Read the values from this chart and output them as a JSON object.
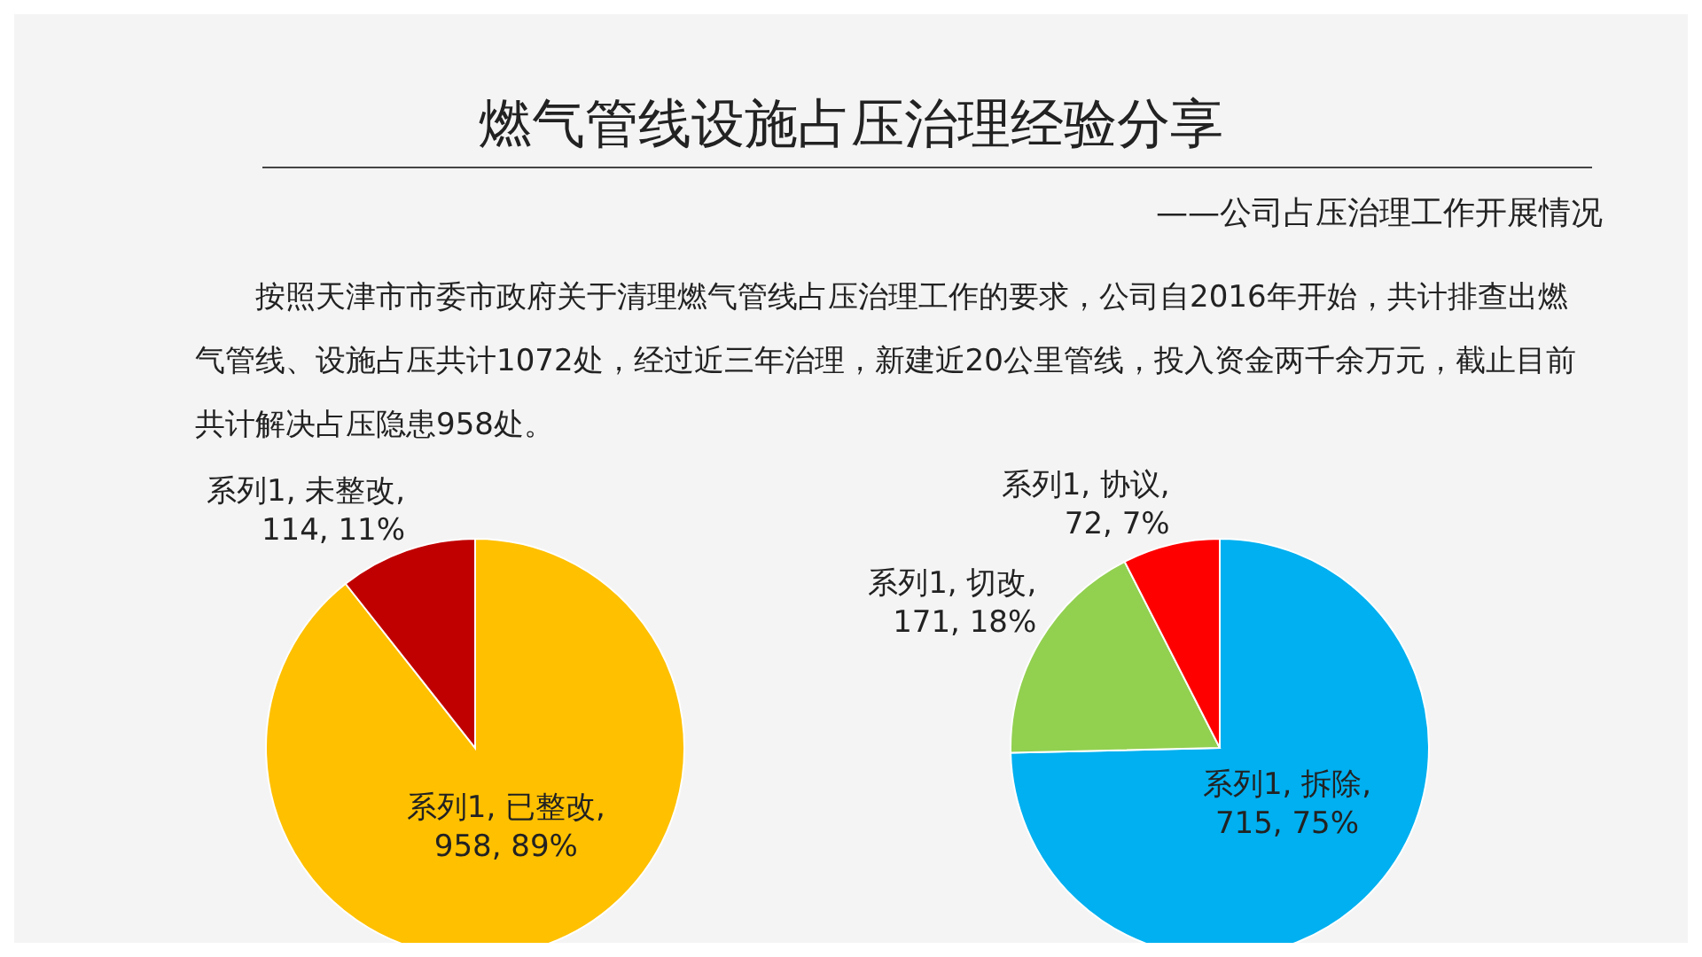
{
  "chart_data": [
    {
      "type": "pie",
      "title": "燃气管线设施占压治理经验分享",
      "annotations": [
        "按照天津市市委市政府关于清理燃气管线占压治理工作的要求，公司自2016年开始，共计排查出燃气管线、设施占压共计1072处，经过近三年治理，新建近20公里管线，投入资金两千余万元，截止目前共计解决占压隐患958处。"
      ],
      "values": [
        958,
        114
      ],
      "colors": [
        "#ffc000",
        "#c00000"
      ],
      "value_labels": [
        "系列1, 已整改, 958, 89%",
        "系列1, 未整改, 114, 11%"
      ],
      "legend": false
    },
    {
      "type": "pie",
      "subtitle": "——公司占压治理工作开展情况",
      "values": [
        715,
        171,
        72
      ],
      "colors": [
        "#00b0f0",
        "#92d050",
        "#ff0000"
      ],
      "value_labels": [
        "系列1, 拆除, 715, 75%",
        "系列1, 切改, 171, 18%",
        "系列1, 协议, 72, 7%"
      ],
      "legend": false
    }
  ]
}
